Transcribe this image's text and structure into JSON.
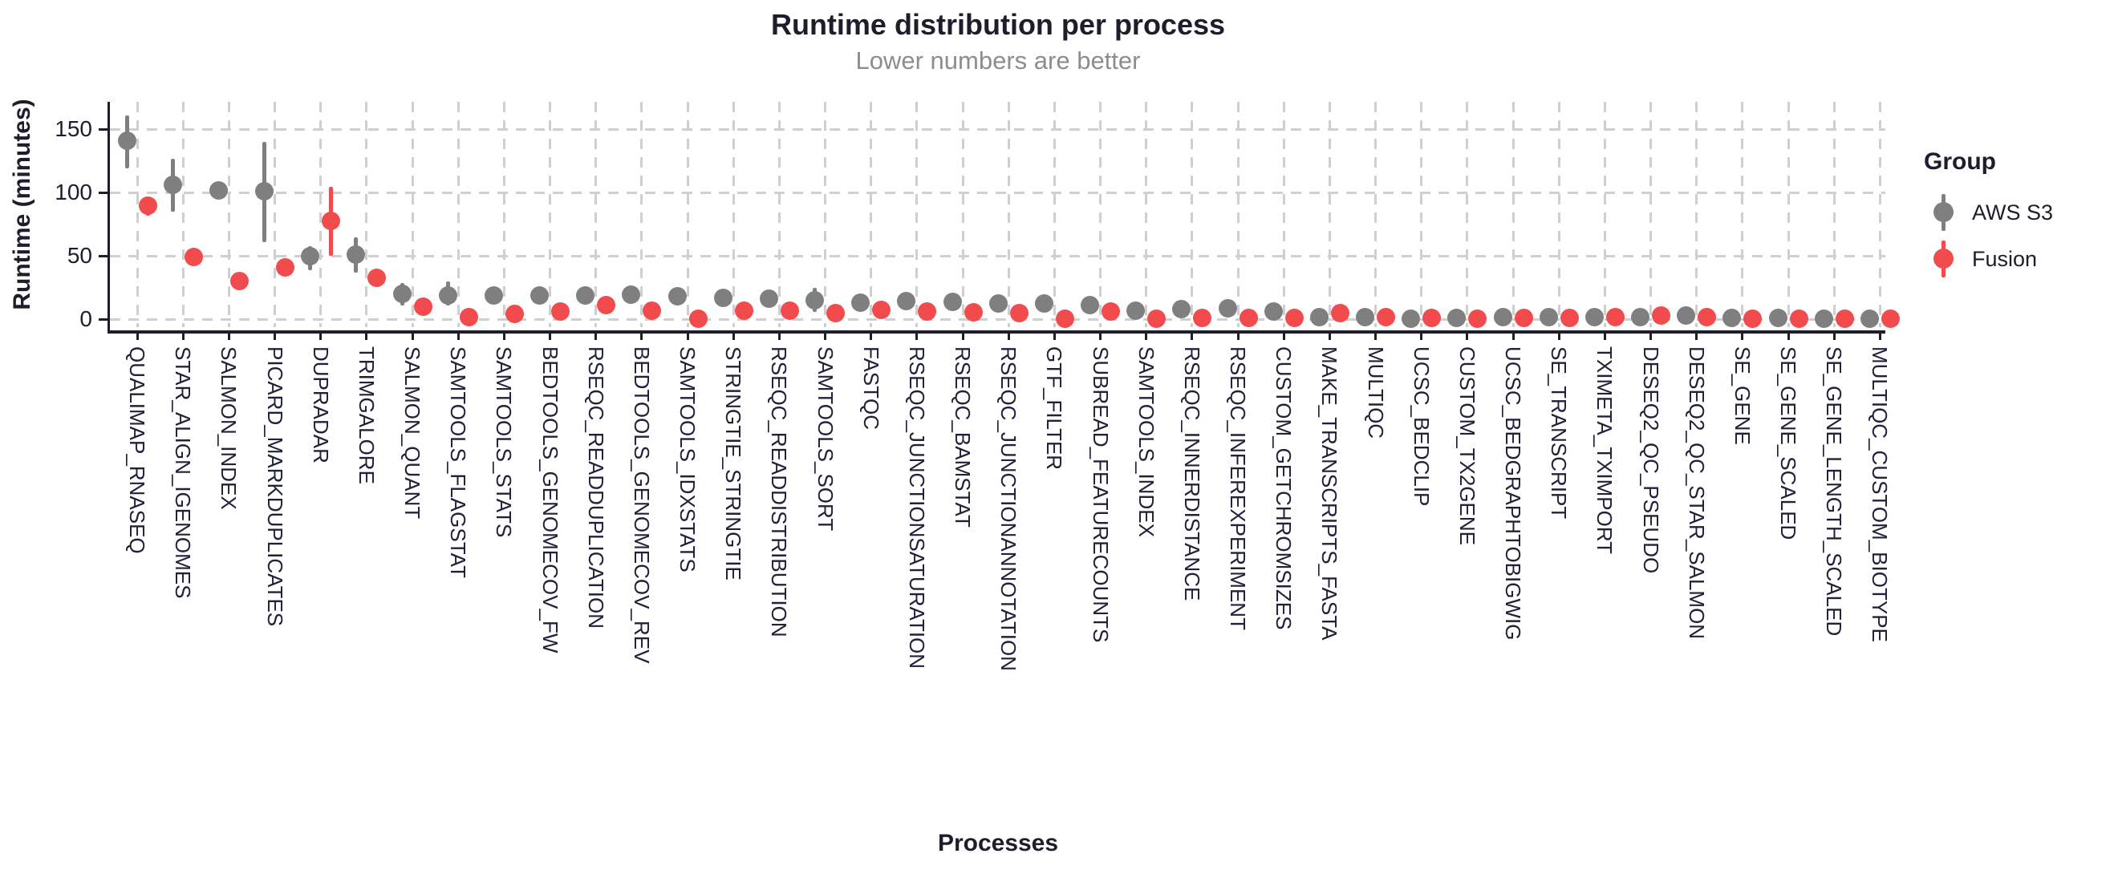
{
  "chart_data": {
    "type": "scatter",
    "variant": "pointrange-dodged",
    "title": "Runtime distribution per process",
    "subtitle": "Lower numbers are better",
    "xlabel": "Processes",
    "ylabel": "Runtime (minutes)",
    "ylim": [
      0,
      170
    ],
    "yticks": [
      0,
      50,
      100,
      150
    ],
    "grid": "dashed",
    "legend": {
      "title": "Group",
      "position": "right",
      "entries": [
        {
          "name": "AWS S3",
          "color": "#7F7F7F"
        },
        {
          "name": "Fusion",
          "color": "#F14B4E"
        }
      ]
    },
    "categories": [
      "QUALIMAP_RNASEQ",
      "STAR_ALIGN_IGENOMES",
      "SALMON_INDEX",
      "PICARD_MARKDUPLICATES",
      "DUPRADAR",
      "TRIMGALORE",
      "SALMON_QUANT",
      "SAMTOOLS_FLAGSTAT",
      "SAMTOOLS_STATS",
      "BEDTOOLS_GENOMECOV_FW",
      "RSEQC_READDUPLICATION",
      "BEDTOOLS_GENOMECOV_REV",
      "SAMTOOLS_IDXSTATS",
      "STRINGTIE_STRINGTIE",
      "RSEQC_READDISTRIBUTION",
      "SAMTOOLS_SORT",
      "FASTQC",
      "RSEQC_JUNCTIONSATURATION",
      "RSEQC_BAMSTAT",
      "RSEQC_JUNCTIONANNOTATION",
      "GTF_FILTER",
      "SUBREAD_FEATURECOUNTS",
      "SAMTOOLS_INDEX",
      "RSEQC_INNERDISTANCE",
      "RSEQC_INFEREXPERIMENT",
      "CUSTOM_GETCHROMSIZES",
      "MAKE_TRANSCRIPTS_FASTA",
      "MULTIQC",
      "UCSC_BEDCLIP",
      "CUSTOM_TX2GENE",
      "UCSC_BEDGRAPHTOBIGWIG",
      "SE_TRANSCRIPT",
      "TXIMETA_TXIMPORT",
      "DESEQ2_QC_PSEUDO",
      "DESEQ2_QC_STAR_SALMON",
      "SE_GENE",
      "SE_GENE_SCALED",
      "SE_GENE_LENGTH_SCALED",
      "MULTIQC_CUSTOM_BIOTYPE"
    ],
    "series": [
      {
        "name": "AWS S3",
        "color": "#7F7F7F",
        "values": [
          141,
          106,
          102,
          101,
          50,
          51,
          20,
          19,
          19,
          19,
          19,
          19.5,
          18,
          17,
          16.5,
          15,
          13,
          14.5,
          14,
          12.5,
          12.5,
          11.5,
          7,
          8,
          9,
          6.5,
          1.5,
          2,
          0.7,
          1,
          1.5,
          2,
          1.7,
          1.5,
          3,
          1.2,
          1,
          0.5,
          0.3
        ],
        "lo": [
          119,
          85,
          99,
          61,
          39,
          37,
          11,
          11,
          16,
          null,
          null,
          null,
          null,
          null,
          null,
          6,
          null,
          null,
          null,
          null,
          null,
          null,
          null,
          null,
          null,
          null,
          null,
          null,
          null,
          null,
          null,
          null,
          null,
          null,
          null,
          null,
          null,
          null,
          null
        ],
        "hi": [
          161,
          127,
          105,
          140,
          58,
          65,
          29,
          30,
          22,
          null,
          null,
          null,
          null,
          null,
          null,
          25,
          null,
          null,
          null,
          null,
          null,
          null,
          null,
          null,
          null,
          null,
          null,
          null,
          null,
          null,
          null,
          null,
          null,
          null,
          null,
          null,
          null,
          null,
          null
        ]
      },
      {
        "name": "Fusion",
        "color": "#F14B4E",
        "values": [
          90,
          49,
          30,
          41,
          78,
          33,
          10,
          1.5,
          4.5,
          6.5,
          11.5,
          7,
          0.8,
          7,
          7,
          5,
          7.5,
          6,
          5.5,
          5,
          0.5,
          6,
          0.8,
          0.9,
          0.9,
          1,
          5,
          2,
          1.3,
          0.6,
          1,
          1.3,
          1.8,
          3.3,
          1.5,
          0.5,
          0.5,
          0.7,
          0.5
        ],
        "lo": [
          82,
          46,
          null,
          null,
          50,
          null,
          4,
          null,
          null,
          null,
          null,
          null,
          null,
          null,
          null,
          null,
          null,
          null,
          null,
          null,
          null,
          null,
          null,
          null,
          null,
          null,
          null,
          null,
          null,
          null,
          null,
          null,
          null,
          null,
          null,
          null,
          null,
          null,
          null
        ],
        "hi": [
          96,
          52,
          null,
          null,
          105,
          null,
          16,
          null,
          null,
          null,
          null,
          null,
          null,
          null,
          null,
          null,
          null,
          null,
          null,
          null,
          null,
          null,
          null,
          null,
          null,
          null,
          null,
          null,
          null,
          null,
          null,
          null,
          null,
          null,
          null,
          null,
          null,
          null,
          null
        ]
      }
    ]
  }
}
